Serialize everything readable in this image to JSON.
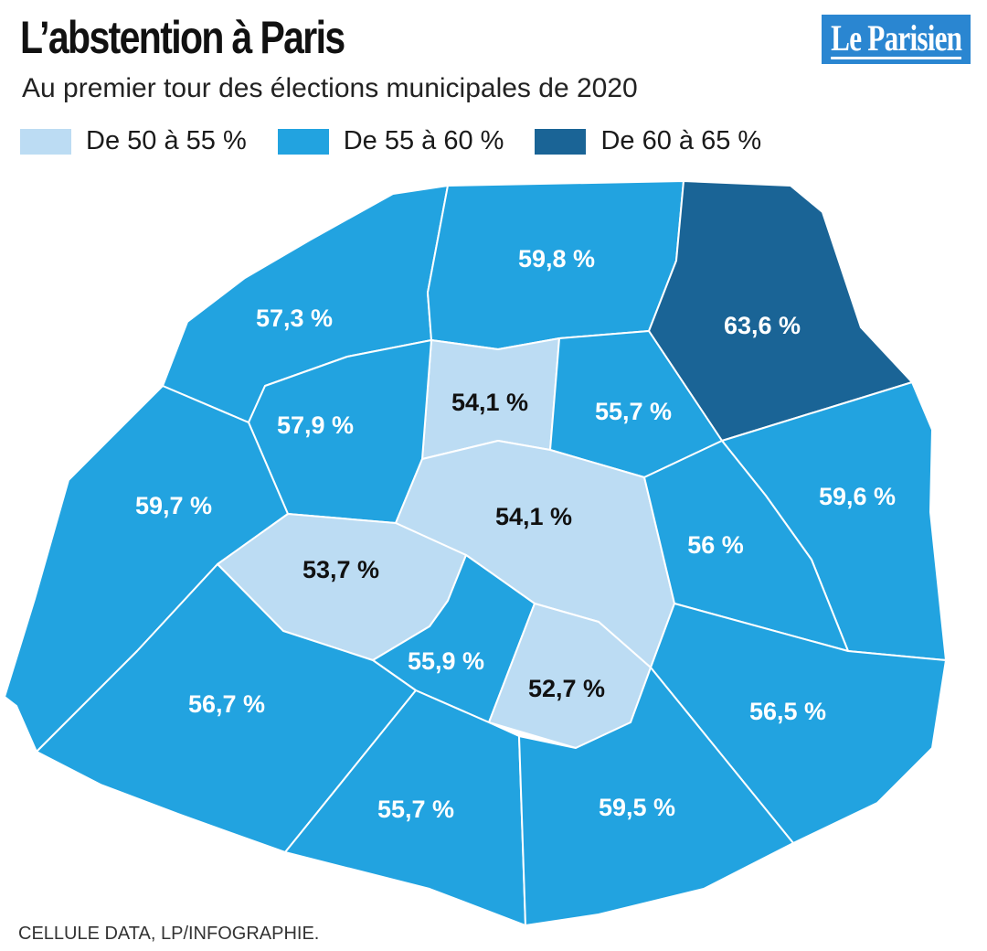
{
  "header": {
    "title": "L’abstention à Paris",
    "subtitle": "Au premier tour des élections municipales de 2020",
    "logo_text": "Le Parisien"
  },
  "legend": [
    {
      "label": "De 50 à 55 %",
      "color": "#bcdcf3"
    },
    {
      "label": "De 55 à 60 %",
      "color": "#22a3e0"
    },
    {
      "label": "De 60 à 65 %",
      "color": "#1a6496"
    }
  ],
  "colors": {
    "light": "#bcdcf3",
    "medium": "#22a3e0",
    "dark": "#1a6496",
    "label_on_light": "#111111",
    "label_on_medium": "#ffffff",
    "logo_background": "#2a86d1"
  },
  "districts": [
    {
      "value": 57.3,
      "label": "57,3 %",
      "class": "medium"
    },
    {
      "value": 59.8,
      "label": "59,8 %",
      "class": "medium"
    },
    {
      "value": 63.6,
      "label": "63,6 %",
      "class": "dark"
    },
    {
      "value": 54.1,
      "label": "54,1 %",
      "class": "light"
    },
    {
      "value": 55.7,
      "label": "55,7 %",
      "class": "medium"
    },
    {
      "value": 57.9,
      "label": "57,9 %",
      "class": "medium"
    },
    {
      "value": 59.7,
      "label": "59,7 %",
      "class": "medium"
    },
    {
      "value": 54.1,
      "label": "54,1 %",
      "class": "light"
    },
    {
      "value": 59.6,
      "label": "59,6 %",
      "class": "medium"
    },
    {
      "value": 56,
      "label": "56 %",
      "class": "medium"
    },
    {
      "value": 53.7,
      "label": "53,7 %",
      "class": "light"
    },
    {
      "value": 55.9,
      "label": "55,9 %",
      "class": "medium"
    },
    {
      "value": 52.7,
      "label": "52,7 %",
      "class": "light"
    },
    {
      "value": 56.7,
      "label": "56,7 %",
      "class": "medium"
    },
    {
      "value": 56.5,
      "label": "56,5 %",
      "class": "medium"
    },
    {
      "value": 55.7,
      "label": "55,7 %",
      "class": "medium"
    },
    {
      "value": 59.5,
      "label": "59,5 %",
      "class": "medium"
    }
  ],
  "source": "CELLULE DATA, LP/INFOGRAPHIE."
}
